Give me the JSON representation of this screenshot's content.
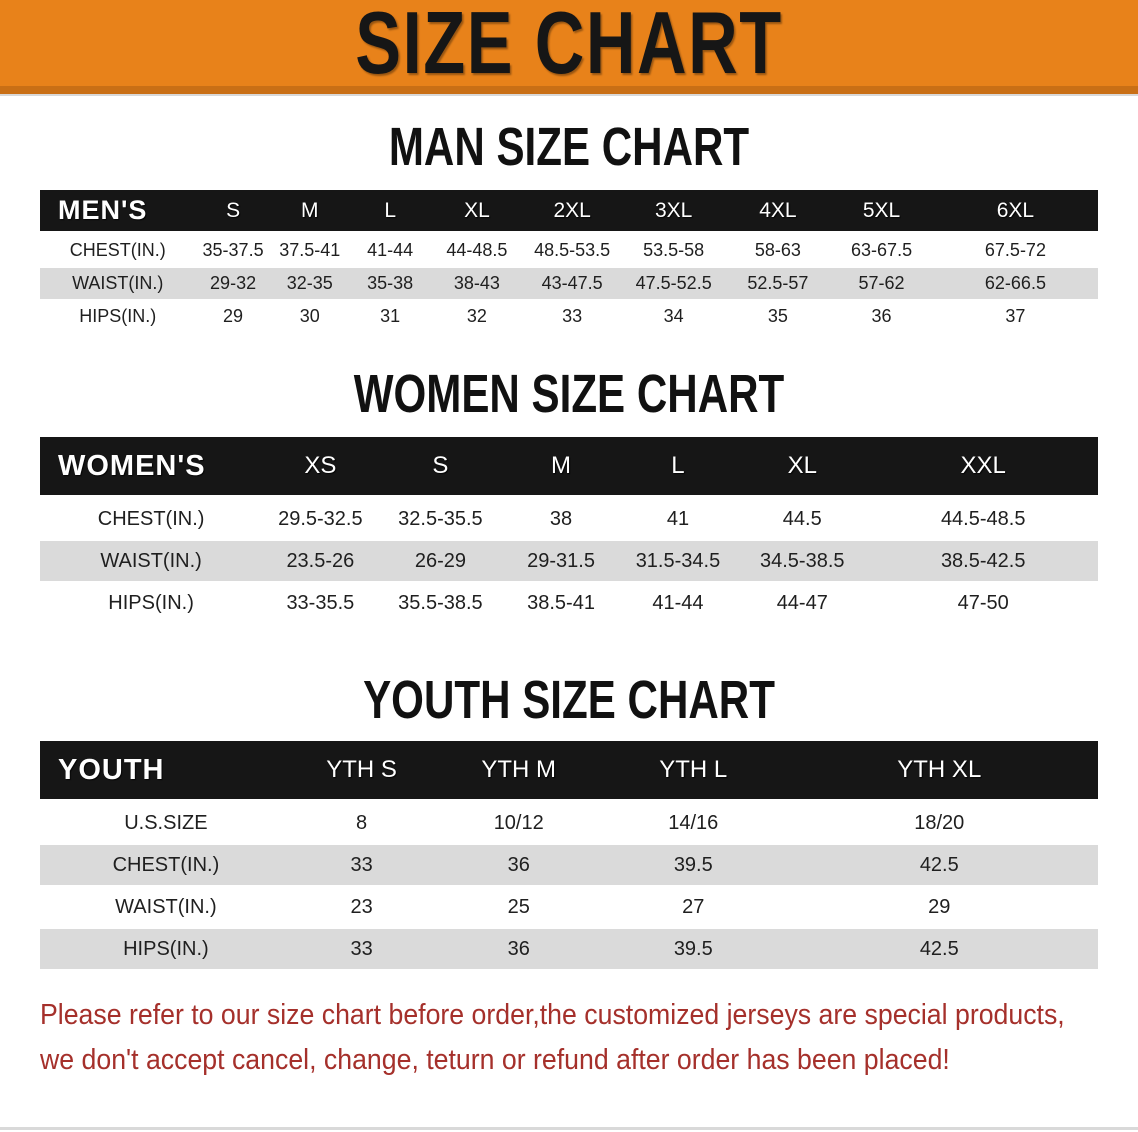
{
  "colors": {
    "banner-bg": "#E8821A",
    "banner-edge": "#C96F15",
    "header-bg": "#161616",
    "stripe": "#DADADA",
    "disclaimer-red": "#A5302B",
    "title-color": "#111111"
  },
  "banner": {
    "title": "SIZE CHART"
  },
  "sections": [
    {
      "title": "MAN SIZE CHART",
      "table": {
        "header_label": "MEN'S",
        "columns": [
          "S",
          "M",
          "L",
          "XL",
          "2XL",
          "3XL",
          "4XL",
          "5XL",
          "6XL"
        ],
        "rows": [
          {
            "label": "CHEST(IN.)",
            "values": [
              "35-37.5",
              "37.5-41",
              "41-44",
              "44-48.5",
              "48.5-53.5",
              "53.5-58",
              "58-63",
              "63-67.5",
              "67.5-72"
            ]
          },
          {
            "label": "WAIST(IN.)",
            "values": [
              "29-32",
              "32-35",
              "35-38",
              "38-43",
              "43-47.5",
              "47.5-52.5",
              "52.5-57",
              "57-62",
              "62-66.5"
            ]
          },
          {
            "label": "HIPS(IN.)",
            "values": [
              "29",
              "30",
              "31",
              "32",
              "33",
              "34",
              "35",
              "36",
              "37"
            ]
          }
        ]
      }
    },
    {
      "title": "WOMEN SIZE CHART",
      "table": {
        "header_label": "WOMEN'S",
        "columns": [
          "XS",
          "S",
          "M",
          "L",
          "XL",
          "XXL"
        ],
        "rows": [
          {
            "label": "CHEST(IN.)",
            "values": [
              "29.5-32.5",
              "32.5-35.5",
              "38",
              "41",
              "44.5",
              "44.5-48.5"
            ]
          },
          {
            "label": "WAIST(IN.)",
            "values": [
              "23.5-26",
              "26-29",
              "29-31.5",
              "31.5-34.5",
              "34.5-38.5",
              "38.5-42.5"
            ]
          },
          {
            "label": "HIPS(IN.)",
            "values": [
              "33-35.5",
              "35.5-38.5",
              "38.5-41",
              "41-44",
              "44-47",
              "47-50"
            ]
          }
        ]
      }
    },
    {
      "title": "YOUTH SIZE CHART",
      "table": {
        "header_label": "YOUTH",
        "columns": [
          "YTH S",
          "YTH M",
          "YTH L",
          "YTH XL"
        ],
        "rows": [
          {
            "label": "U.S.SIZE",
            "values": [
              "8",
              "10/12",
              "14/16",
              "18/20"
            ]
          },
          {
            "label": "CHEST(IN.)",
            "values": [
              "33",
              "36",
              "39.5",
              "42.5"
            ]
          },
          {
            "label": "WAIST(IN.)",
            "values": [
              "23",
              "25",
              "27",
              "29"
            ]
          },
          {
            "label": "HIPS(IN.)",
            "values": [
              "33",
              "36",
              "39.5",
              "42.5"
            ]
          }
        ]
      }
    }
  ],
  "disclaimer": {
    "line1": "Please refer to our size chart before order,the customized jerseys are special products,",
    "line2": "we don't accept cancel, change, teturn or refund after order has been placed!"
  }
}
